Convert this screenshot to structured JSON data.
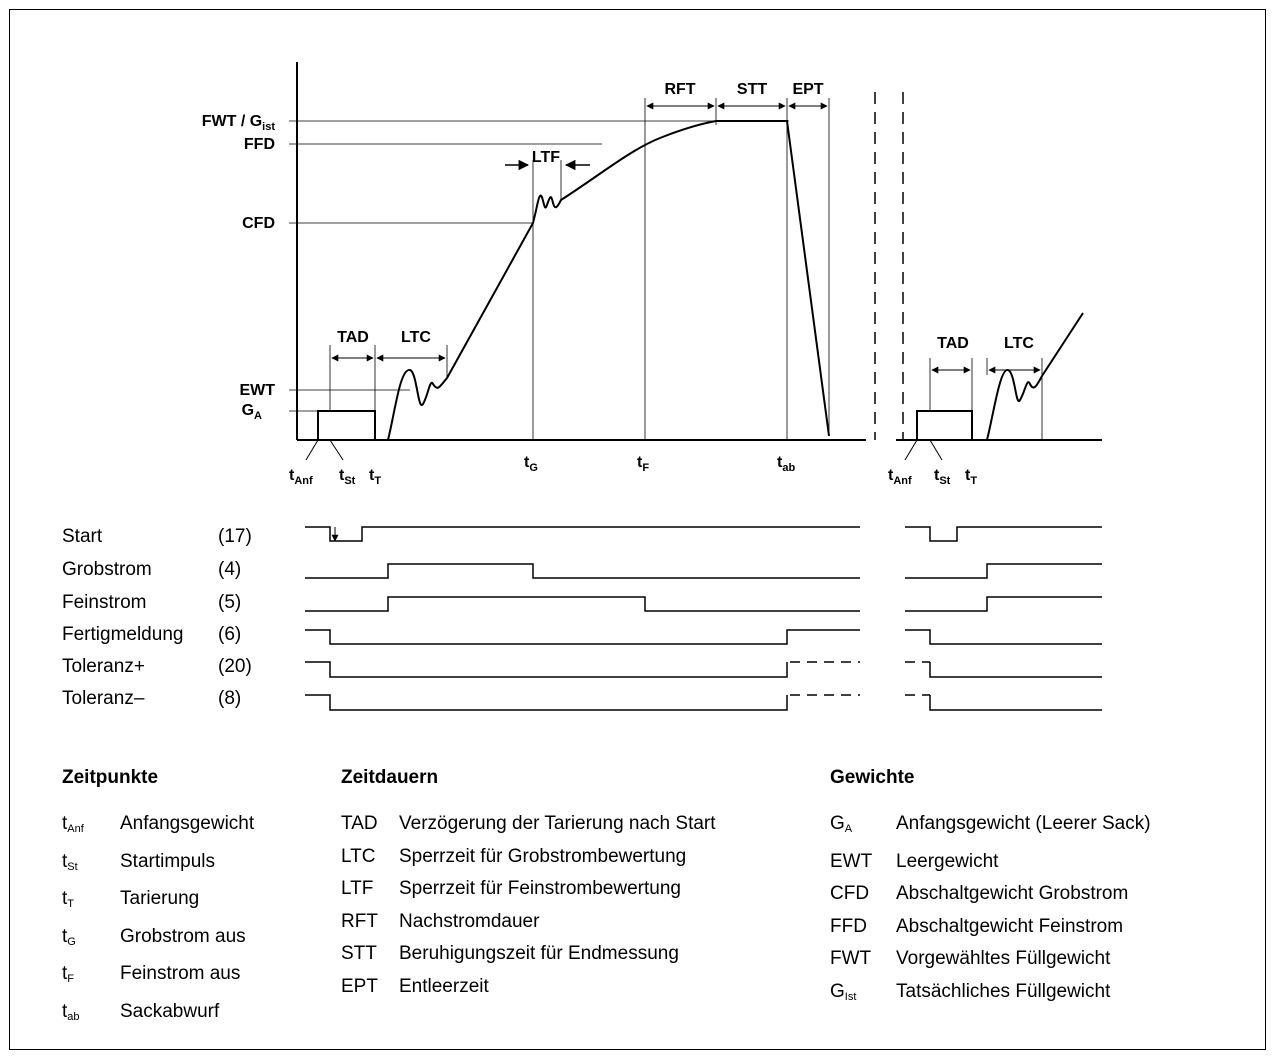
{
  "graph": {
    "y_labels": [
      {
        "key": "fwt",
        "main": "FWT / G",
        "sub": "ist"
      },
      {
        "key": "ffd",
        "main": "FFD",
        "sub": ""
      },
      {
        "key": "cfd",
        "main": "CFD",
        "sub": ""
      },
      {
        "key": "ewt",
        "main": "EWT",
        "sub": ""
      },
      {
        "key": "ga",
        "main": "G",
        "sub": "A"
      }
    ],
    "interval_labels": {
      "tad_1": "TAD",
      "ltc_1": "LTC",
      "ltf": "LTF",
      "rft": "RFT",
      "stt": "STT",
      "ept": "EPT",
      "tad_2": "TAD",
      "ltc_2": "LTC"
    },
    "time_labels": [
      {
        "main": "t",
        "sub": "Anf"
      },
      {
        "main": "t",
        "sub": "St"
      },
      {
        "main": "t",
        "sub": "T"
      },
      {
        "main": "t",
        "sub": "G"
      },
      {
        "main": "t",
        "sub": "F"
      },
      {
        "main": "t",
        "sub": "ab"
      },
      {
        "main": "t",
        "sub": "Anf"
      },
      {
        "main": "t",
        "sub": "St"
      },
      {
        "main": "t",
        "sub": "T"
      }
    ]
  },
  "signals": [
    {
      "name": "Start",
      "num": "(17)"
    },
    {
      "name": "Grobstrom",
      "num": "(4)"
    },
    {
      "name": "Feinstrom",
      "num": "(5)"
    },
    {
      "name": "Fertigmeldung",
      "num": "(6)"
    },
    {
      "name": "Toleranz+",
      "num": "(20)"
    },
    {
      "name": "Toleranz–",
      "num": "(8)"
    }
  ],
  "legend": {
    "zeitpunkte": {
      "title": "Zeitpunkte",
      "items": [
        {
          "main": "t",
          "sub": "Anf",
          "text": "Anfangsgewicht"
        },
        {
          "main": "t",
          "sub": "St",
          "text": "Startimpuls"
        },
        {
          "main": "t",
          "sub": "T",
          "text": "Tarierung"
        },
        {
          "main": "t",
          "sub": "G",
          "text": "Grobstrom aus"
        },
        {
          "main": "t",
          "sub": "F",
          "text": "Feinstrom aus"
        },
        {
          "main": "t",
          "sub": "ab",
          "text": "Sackabwurf"
        }
      ]
    },
    "zeitdauern": {
      "title": "Zeitdauern",
      "items": [
        {
          "abbr": "TAD",
          "text": "Verzögerung der Tarierung nach Start"
        },
        {
          "abbr": "LTC",
          "text": "Sperrzeit für Grobstrombewertung"
        },
        {
          "abbr": "LTF",
          "text": "Sperrzeit für Feinstrombewertung"
        },
        {
          "abbr": "RFT",
          "text": "Nachstromdauer"
        },
        {
          "abbr": "STT",
          "text": "Beruhigungszeit für Endmessung"
        },
        {
          "abbr": "EPT",
          "text": "Entleerzeit"
        }
      ]
    },
    "gewichte": {
      "title": "Gewichte",
      "items": [
        {
          "main": "G",
          "sub": "A",
          "text": "Anfangsgewicht (Leerer Sack)"
        },
        {
          "main": "EWT",
          "sub": "",
          "text": "Leergewicht"
        },
        {
          "main": "CFD",
          "sub": "",
          "text": "Abschaltgewicht Grobstrom"
        },
        {
          "main": "FFD",
          "sub": "",
          "text": "Abschaltgewicht Feinstrom"
        },
        {
          "main": "FWT",
          "sub": "",
          "text": "Vorgewähltes Füllgewicht"
        },
        {
          "main": "G",
          "sub": "Ist",
          "text": "Tatsächliches Füllgewicht"
        }
      ]
    }
  }
}
